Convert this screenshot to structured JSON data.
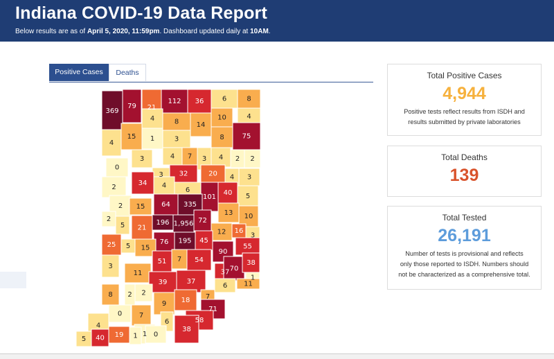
{
  "header": {
    "title": "Indiana COVID-19 Data Report",
    "sub_prefix": "Below results are as of ",
    "sub_date": "April 5, 2020, 11:59pm",
    "sub_mid": ". Dashboard updated daily at ",
    "sub_time": "10AM",
    "sub_end": "."
  },
  "tabs": [
    {
      "label": "Positive Cases",
      "active": true
    },
    {
      "label": "Deaths",
      "active": false
    }
  ],
  "colors": {
    "header_bg": "#1f3d74",
    "positive": "#f6b13d",
    "deaths": "#d9532c",
    "tested": "#5d9cdb",
    "scale": [
      "#fff7c6",
      "#fde18e",
      "#f9ad4e",
      "#ef6a33",
      "#d6282f",
      "#a3112f",
      "#6f0d2a"
    ]
  },
  "cards": {
    "positive": {
      "title": "Total Positive Cases",
      "value": "4,944",
      "note1": "Positive tests reflect results from ISDH and",
      "note2": "results submitted by private laboratories"
    },
    "deaths": {
      "title": "Total Deaths",
      "value": "139"
    },
    "tested": {
      "title": "Total Tested",
      "value": "26,191",
      "note1": "Number of tests is provisional and reflects",
      "note2": "only those reported to ISDH. Numbers should",
      "note3": "not be characterized as a comprehensive total."
    }
  },
  "counties": [
    {
      "v": 369
    },
    {
      "v": 79
    },
    {
      "v": 21
    },
    {
      "v": 112
    },
    {
      "v": 36
    },
    {
      "v": 6
    },
    {
      "v": 8
    },
    {
      "v": 4
    },
    {
      "v": 8
    },
    {
      "v": 14
    },
    {
      "v": 10
    },
    {
      "v": 4
    },
    {
      "v": 4
    },
    {
      "v": 15
    },
    {
      "v": 1
    },
    {
      "v": 3
    },
    {
      "v": 8
    },
    {
      "v": 75
    },
    {
      "v": 3
    },
    {
      "v": 4
    },
    {
      "v": 7
    },
    {
      "v": 3
    },
    {
      "v": 4
    },
    {
      "v": 2
    },
    {
      "v": 2
    },
    {
      "v": 0
    },
    {
      "v": 3
    },
    {
      "v": 32
    },
    {
      "v": 20
    },
    {
      "v": 4
    },
    {
      "v": 3
    },
    {
      "v": 2
    },
    {
      "v": 34
    },
    {
      "v": 4
    },
    {
      "v": 6
    },
    {
      "v": 101
    },
    {
      "v": 40
    },
    {
      "v": 2
    },
    {
      "v": 64
    },
    {
      "v": 335
    },
    {
      "v": 5
    },
    {
      "v": 15
    },
    {
      "v": 13
    },
    {
      "v": 10
    },
    {
      "v": 2
    },
    {
      "v": 5
    },
    {
      "v": 21
    },
    {
      "v": 196
    },
    {
      "v": 1956
    },
    {
      "v": 72
    },
    {
      "v": 12
    },
    {
      "v": 16
    },
    {
      "v": 3
    },
    {
      "v": 25
    },
    {
      "v": 5
    },
    {
      "v": 76
    },
    {
      "v": 195
    },
    {
      "v": 45
    },
    {
      "v": 90
    },
    {
      "v": 55
    },
    {
      "v": 15
    },
    {
      "v": 51
    },
    {
      "v": 7
    },
    {
      "v": 54
    },
    {
      "v": 3
    },
    {
      "v": 11
    },
    {
      "v": 37
    },
    {
      "v": 70
    },
    {
      "v": 38
    },
    {
      "v": 39
    },
    {
      "v": 37
    },
    {
      "v": 1
    },
    {
      "v": 8
    },
    {
      "v": 2
    },
    {
      "v": 2
    },
    {
      "v": 6
    },
    {
      "v": 11
    },
    {
      "v": 9
    },
    {
      "v": 18
    },
    {
      "v": 7
    },
    {
      "v": 0
    },
    {
      "v": 7
    },
    {
      "v": 71
    },
    {
      "v": 4
    },
    {
      "v": 6
    },
    {
      "v": 58
    },
    {
      "v": 1
    },
    {
      "v": 38
    },
    {
      "v": 5
    },
    {
      "v": 40
    },
    {
      "v": 19
    },
    {
      "v": 1
    },
    {
      "v": 0
    }
  ]
}
